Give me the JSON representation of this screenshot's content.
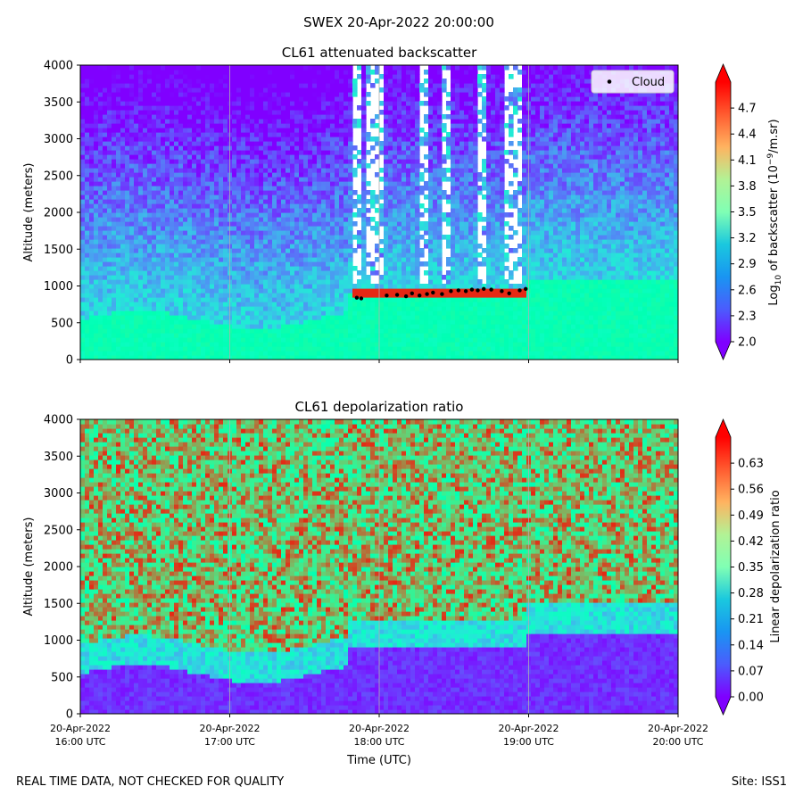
{
  "suptitle": "SWEX 20-Apr-2022 20:00:00",
  "footer": {
    "left": "REAL TIME DATA, NOT CHECKED FOR QUALITY",
    "right": "Site: ISS1"
  },
  "chart_data": [
    {
      "type": "heatmap",
      "title": "CL61 attenuated backscatter",
      "ylabel": "Altitude (meters)",
      "xlabel": "",
      "ylim": [
        0,
        4000
      ],
      "yticks": [
        0,
        500,
        1000,
        1500,
        2000,
        2500,
        3000,
        3500,
        4000
      ],
      "xlim": [
        "20-Apr-2022 16:00 UTC",
        "20-Apr-2022 20:00 UTC"
      ],
      "xticks_hours": [
        16,
        17,
        18,
        19,
        20
      ],
      "xtick_labels_visible": false,
      "grid": "vertical lines at x ticks",
      "colormap": "rainbow",
      "colorbar": {
        "label_prefix": "Log",
        "label_sub": "10",
        "label_mid": " of backscatter (10",
        "label_sup": "−9",
        "label_suffix": "/m.sr)",
        "range": [
          2.0,
          5.0
        ],
        "extend": "both",
        "ticks": [
          "2.0",
          "2.3",
          "2.6",
          "2.9",
          "3.2",
          "3.5",
          "3.8",
          "4.1",
          "4.4",
          "4.7"
        ]
      },
      "legend": {
        "position": "top-right",
        "entries": [
          {
            "name": "Cloud",
            "marker": "black dot"
          }
        ]
      },
      "cloud_base_points": [
        [
          17.85,
          840
        ],
        [
          17.88,
          830
        ],
        [
          18.05,
          870
        ],
        [
          18.12,
          880
        ],
        [
          18.18,
          860
        ],
        [
          18.22,
          900
        ],
        [
          18.27,
          870
        ],
        [
          18.32,
          890
        ],
        [
          18.36,
          910
        ],
        [
          18.42,
          890
        ],
        [
          18.48,
          930
        ],
        [
          18.53,
          940
        ],
        [
          18.58,
          930
        ],
        [
          18.62,
          950
        ],
        [
          18.66,
          940
        ],
        [
          18.7,
          960
        ],
        [
          18.75,
          950
        ],
        [
          18.82,
          930
        ],
        [
          18.87,
          900
        ],
        [
          18.94,
          940
        ],
        [
          18.98,
          960
        ]
      ]
    },
    {
      "type": "heatmap",
      "title": "CL61 depolarization ratio",
      "ylabel": "Altitude (meters)",
      "xlabel": "Time (UTC)",
      "ylim": [
        0,
        4000
      ],
      "yticks": [
        0,
        500,
        1000,
        1500,
        2000,
        2500,
        3000,
        3500,
        4000
      ],
      "xlim": [
        "20-Apr-2022 16:00 UTC",
        "20-Apr-2022 20:00 UTC"
      ],
      "xticks_hours": [
        16,
        17,
        18,
        19,
        20
      ],
      "xtick_labels": [
        [
          "20-Apr-2022",
          "16:00 UTC"
        ],
        [
          "20-Apr-2022",
          "17:00 UTC"
        ],
        [
          "20-Apr-2022",
          "18:00 UTC"
        ],
        [
          "20-Apr-2022",
          "19:00 UTC"
        ],
        [
          "20-Apr-2022",
          "20:00 UTC"
        ]
      ],
      "grid": "vertical lines at x ticks",
      "colormap": "rainbow",
      "colorbar": {
        "label": "Linear depolarization ratio",
        "range": [
          0.0,
          0.7
        ],
        "extend": "both",
        "ticks": [
          "0.00",
          "0.07",
          "0.14",
          "0.21",
          "0.28",
          "0.35",
          "0.42",
          "0.49",
          "0.56",
          "0.63"
        ]
      }
    }
  ],
  "colors": {
    "background": "#ffffff",
    "gridline": "#b0b0b0",
    "cloud_marker": "#000000"
  }
}
